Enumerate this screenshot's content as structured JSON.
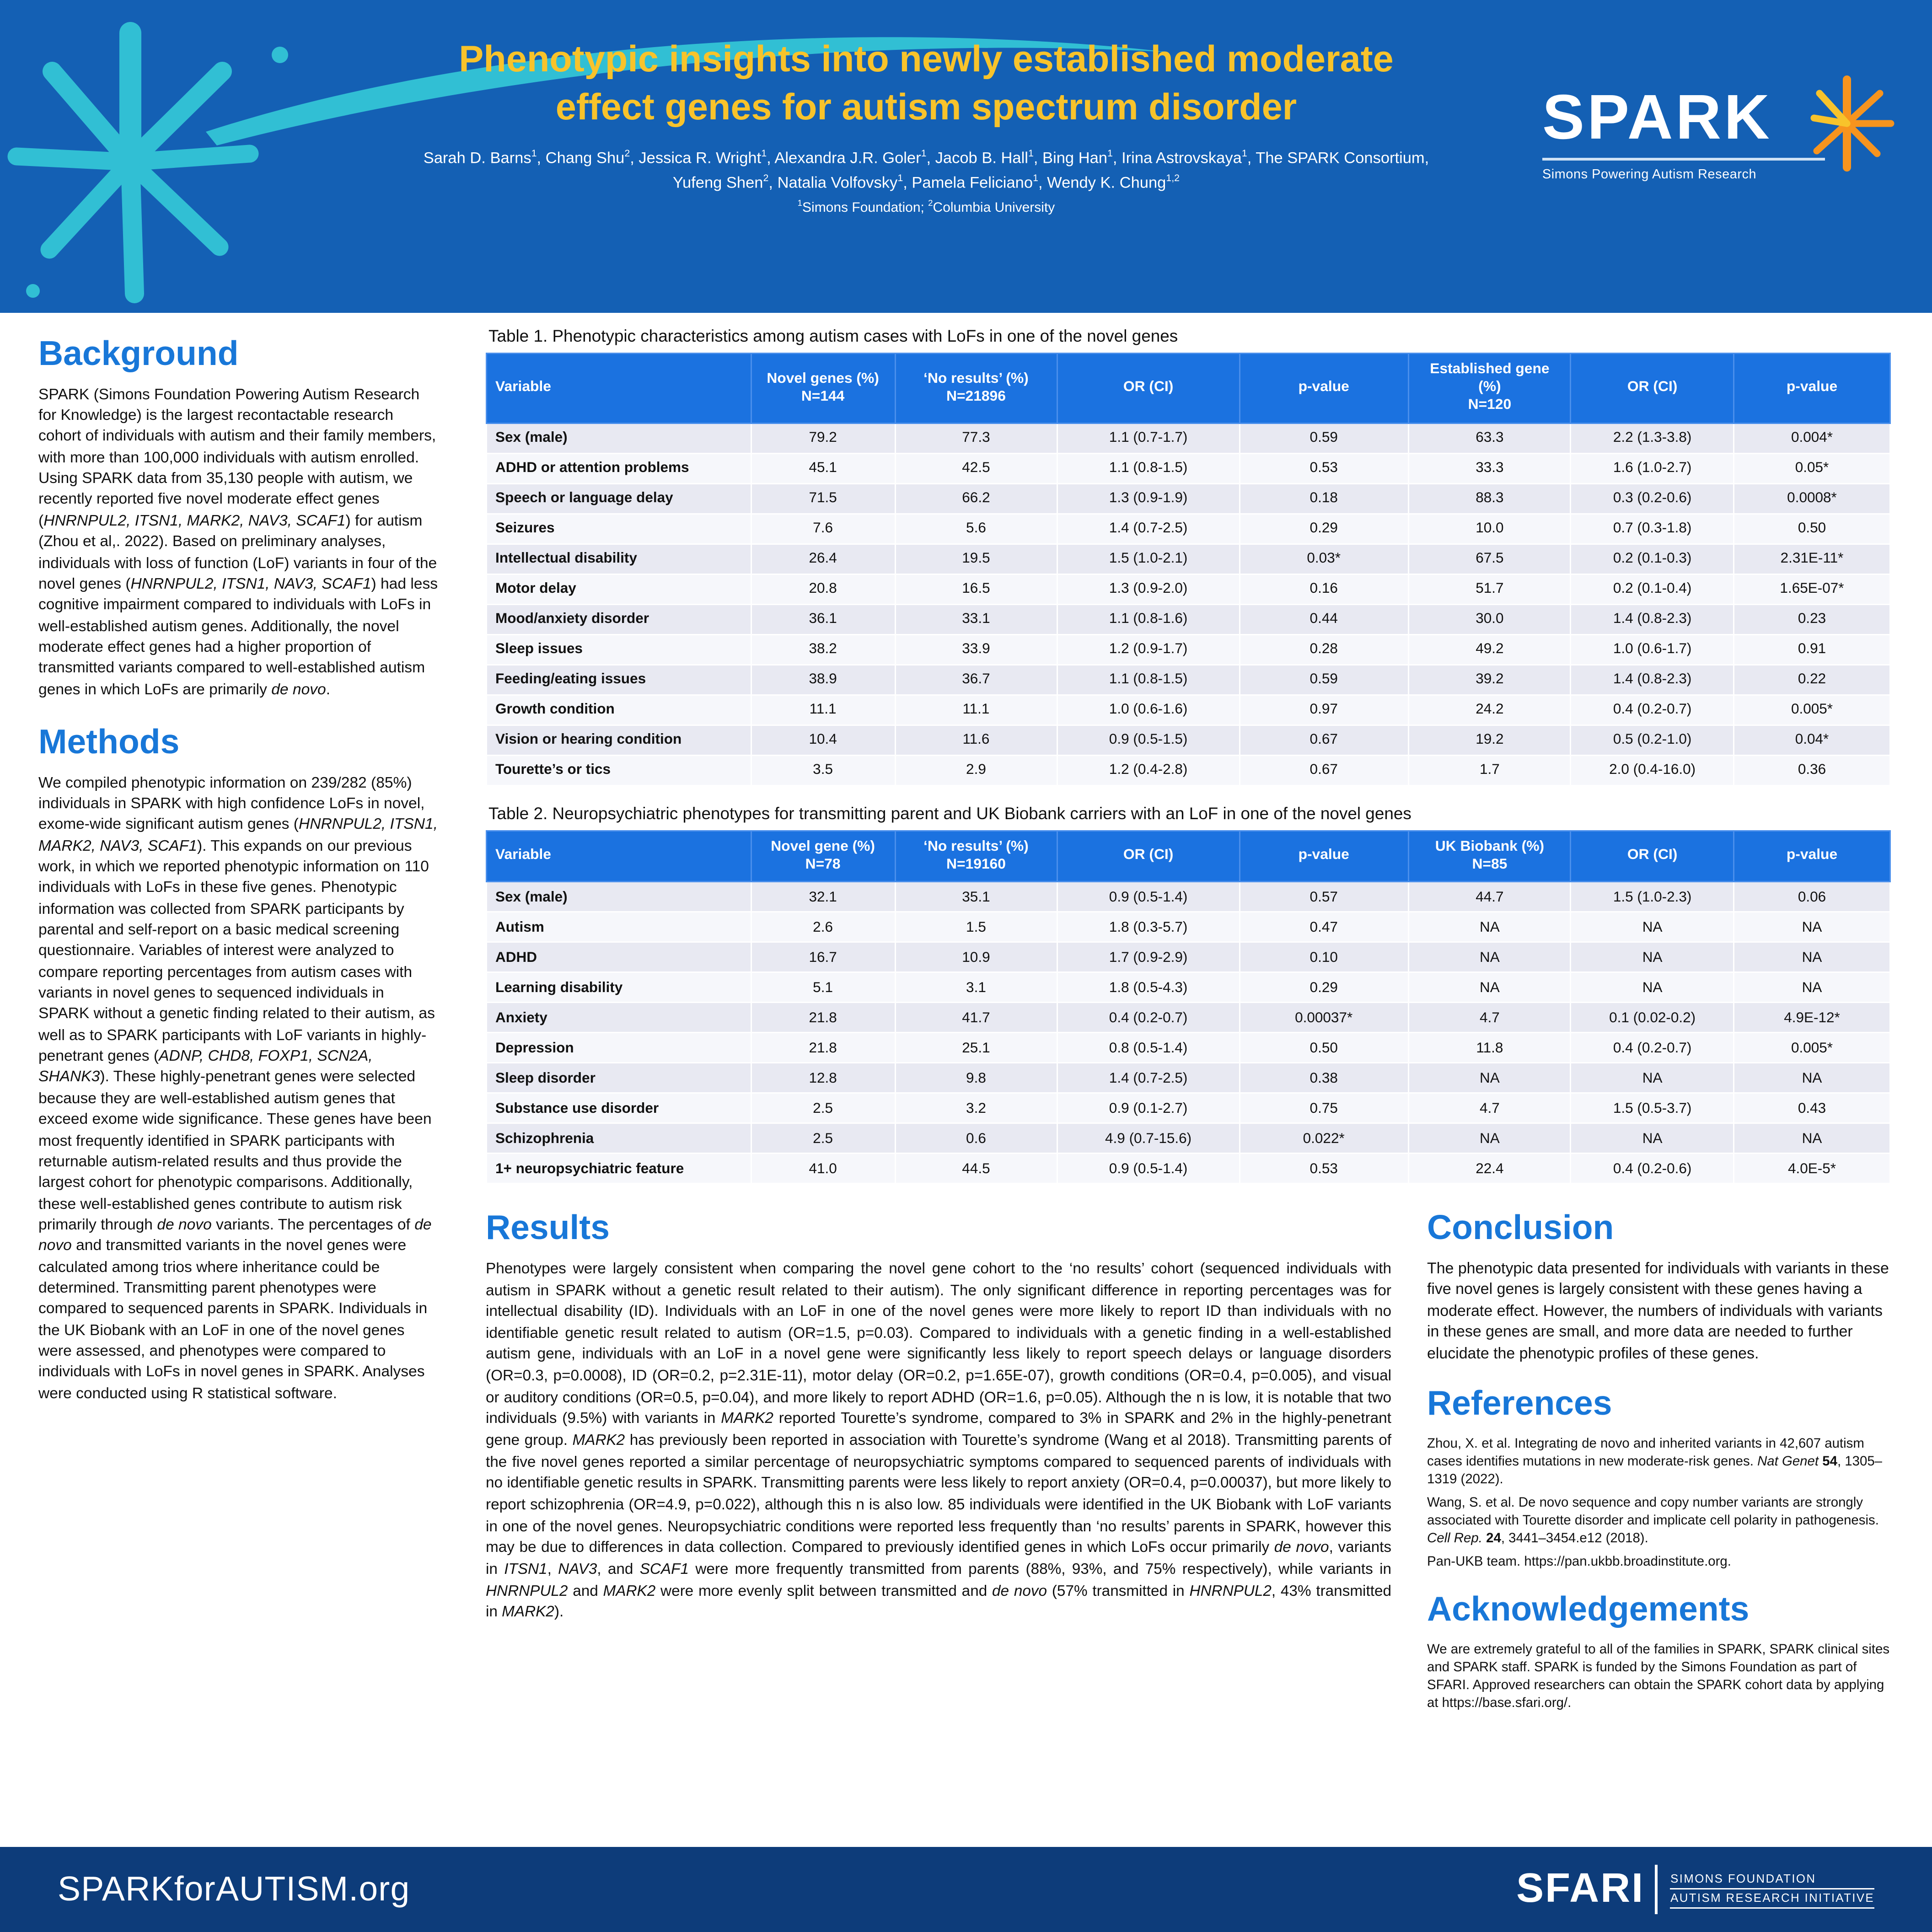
{
  "colors": {
    "header_blue": "#1460B4",
    "table_header_blue": "#1B72E0",
    "section_heading_blue": "#1877D8",
    "title_yellow": "#F8C32B",
    "teal_accent": "#31BFD4",
    "orange_accent": "#F7941E",
    "footer_navy": "#0D3C7A",
    "row_stripe": "#E8E9F2"
  },
  "header": {
    "title_lines": [
      "Phenotypic insights into newly established moderate",
      "effect genes for autism spectrum disorder"
    ],
    "authors_html": "Sarah D. Barns<sup>1</sup>, Chang Shu<sup>2</sup>, Jessica R. Wright<sup>1</sup>, Alexandra J.R. Goler<sup>1</sup>, Jacob B. Hall<sup>1</sup>, Bing Han<sup>1</sup>, Irina Astrovskaya<sup>1</sup>, The SPARK Consortium, Yufeng Shen<sup>2</sup>, Natalia Volfovsky<sup>1</sup>, Pamela Feliciano<sup>1</sup>, Wendy K. Chung<sup>1,2</sup>",
    "affiliations_html": "<sup>1</sup>Simons Foundation; <sup>2</sup>Columbia University",
    "logo": {
      "name": "SPARK",
      "tagline": "Simons Powering Autism Research"
    }
  },
  "sections": {
    "background": {
      "heading": "Background",
      "text_html": "SPARK (Simons Foundation Powering Autism Research for Knowledge) is the largest recontactable research cohort of individuals with autism and their family members, with more than 100,000 individuals with autism enrolled. Using SPARK data from 35,130 people with autism, we recently reported five novel moderate effect genes (<i>HNRNPUL2, ITSN1, MARK2, NAV3, SCAF1</i>) for autism (Zhou et al,. 2022). Based on preliminary analyses, individuals with loss of function (LoF) variants in four of the novel genes (<i>HNRNPUL2, ITSN1, NAV3, SCAF1</i>) had less cognitive impairment compared to individuals with LoFs in well-established autism genes. Additionally, the novel moderate effect genes had a higher proportion of transmitted variants compared to well-established autism genes in which LoFs are primarily <i>de novo</i>."
    },
    "methods": {
      "heading": "Methods",
      "text_html": "We compiled phenotypic information on 239/282 (85%) individuals in SPARK with high confidence LoFs in novel, exome-wide significant autism genes (<i>HNRNPUL2, ITSN1, MARK2, NAV3, SCAF1</i>). This expands on our previous work, in which we reported phenotypic information on 110 individuals with LoFs in these five genes. Phenotypic information was collected from SPARK participants by parental and self-report on a basic medical screening questionnaire. Variables of interest were analyzed to compare reporting percentages from autism cases with variants in novel genes to sequenced individuals in SPARK without a genetic finding related to their autism, as well as to SPARK participants with LoF variants in highly-penetrant genes (<i>ADNP, CHD8, FOXP1, SCN2A, SHANK3</i>). These highly-penetrant genes were selected because they are well-established autism genes that exceed exome wide significance. These genes have been most frequently identified in SPARK participants with returnable autism-related results and thus provide the largest cohort for phenotypic comparisons. Additionally, these well-established genes contribute to autism risk primarily through <i>de novo</i> variants. The percentages of <i>de novo</i> and transmitted variants in the novel genes were calculated among trios where inheritance could be determined. Transmitting parent phenotypes were compared to sequenced parents in SPARK. Individuals in the UK Biobank with an LoF in one of the novel genes were assessed, and phenotypes were compared to individuals with LoFs in novel genes in SPARK. Analyses were conducted using R statistical software."
    },
    "results": {
      "heading": "Results",
      "text_html": "Phenotypes were largely consistent when comparing the novel gene cohort to the ‘no results’ cohort (sequenced individuals with autism in SPARK without a genetic result related to their autism). The only significant difference in reporting percentages was for intellectual disability (ID). Individuals with an LoF in one of the novel genes were more likely to report ID than individuals with no identifiable genetic result related to autism (OR=1.5, p=0.03). Compared to individuals with a genetic finding in a well-established autism gene, individuals with an LoF in a novel gene were significantly less likely to report speech delays or language disorders (OR=0.3, p=0.0008), ID (OR=0.2, p=2.31E-11), motor delay (OR=0.2, p=1.65E-07), growth conditions (OR=0.4, p=0.005), and visual or auditory conditions (OR=0.5, p=0.04), and more likely to report ADHD (OR=1.6, p=0.05). Although the n is low, it is notable that two individuals (9.5%) with variants in <i>MARK2</i> reported Tourette’s syndrome, compared to 3% in SPARK and 2% in the highly-penetrant gene group. <i>MARK2</i> has previously been reported in association with Tourette’s syndrome (Wang et al 2018). Transmitting parents of the five novel genes reported a similar percentage of neuropsychiatric symptoms compared to sequenced parents of individuals with no identifiable genetic results in SPARK. Transmitting parents were less likely to report anxiety (OR=0.4, p=0.00037), but more likely to report schizophrenia (OR=4.9, p=0.022), although this n is also low. 85 individuals were identified in the UK Biobank with LoF variants in one of the novel genes. Neuropsychiatric conditions were reported less frequently than ‘no results’ parents in SPARK, however this may be due to differences in data collection. Compared to previously identified genes in which LoFs occur primarily <i>de novo</i>, variants in <i>ITSN1</i>, <i>NAV3</i>, and <i>SCAF1</i> were more frequently transmitted from parents (88%, 93%, and 75% respectively), while variants in <i>HNRNPUL2</i> and <i>MARK2</i> were more evenly split between transmitted and <i>de novo</i> (57% transmitted in <i>HNRNPUL2</i>, 43% transmitted in <i>MARK2</i>)."
    },
    "conclusion": {
      "heading": "Conclusion",
      "text_html": "The phenotypic data presented for individuals with variants in these five novel genes is largely consistent with these genes having a moderate effect. However, the numbers of individuals with variants in these genes are small, and more data are needed to further elucidate the phenotypic profiles of these genes."
    },
    "references": {
      "heading": "References",
      "items_html": [
        "Zhou, X. et al. Integrating de novo and inherited variants in 42,607 autism cases identifies mutations in new moderate-risk genes. <i>Nat Genet</i> <b>54</b>, 1305–1319 (2022).",
        "Wang, S. et al. De novo sequence and copy number variants are strongly associated with Tourette disorder and implicate cell polarity in pathogenesis. <i>Cell Rep.</i> <b>24</b>, 3441–3454.e12 (2018).",
        "Pan-UKB team. https://pan.ukbb.broadinstitute.org."
      ]
    },
    "acknowledgements": {
      "heading": "Acknowledgements",
      "text_html": "We are extremely grateful to all of the families in SPARK, SPARK clinical sites and SPARK staff. SPARK is funded by the Simons Foundation as part of SFARI. Approved researchers can obtain the SPARK cohort data by applying at https://base.sfari.org/."
    }
  },
  "table1": {
    "caption": "Table 1. Phenotypic characteristics among autism cases with LoFs in one of the novel genes",
    "columns": [
      "Variable",
      "Novel genes (%)<br>N=144",
      "‘No results’ (%)<br>N=21896",
      "OR (CI)",
      "p-value",
      "Established gene (%)<br>N=120",
      "OR (CI)",
      "p-value"
    ],
    "rows": [
      [
        "Sex (male)",
        "79.2",
        "77.3",
        "1.1 (0.7-1.7)",
        "0.59",
        "63.3",
        "2.2 (1.3-3.8)",
        "0.004*"
      ],
      [
        "ADHD or attention problems",
        "45.1",
        "42.5",
        "1.1 (0.8-1.5)",
        "0.53",
        "33.3",
        "1.6 (1.0-2.7)",
        "0.05*"
      ],
      [
        "Speech or language delay",
        "71.5",
        "66.2",
        "1.3 (0.9-1.9)",
        "0.18",
        "88.3",
        "0.3 (0.2-0.6)",
        "0.0008*"
      ],
      [
        "Seizures",
        "7.6",
        "5.6",
        "1.4 (0.7-2.5)",
        "0.29",
        "10.0",
        "0.7 (0.3-1.8)",
        "0.50"
      ],
      [
        "Intellectual disability",
        "26.4",
        "19.5",
        "1.5 (1.0-2.1)",
        "0.03*",
        "67.5",
        "0.2 (0.1-0.3)",
        "2.31E-11*"
      ],
      [
        "Motor delay",
        "20.8",
        "16.5",
        "1.3 (0.9-2.0)",
        "0.16",
        "51.7",
        "0.2 (0.1-0.4)",
        "1.65E-07*"
      ],
      [
        "Mood/anxiety disorder",
        "36.1",
        "33.1",
        "1.1 (0.8-1.6)",
        "0.44",
        "30.0",
        "1.4 (0.8-2.3)",
        "0.23"
      ],
      [
        "Sleep issues",
        "38.2",
        "33.9",
        "1.2 (0.9-1.7)",
        "0.28",
        "49.2",
        "1.0 (0.6-1.7)",
        "0.91"
      ],
      [
        "Feeding/eating issues",
        "38.9",
        "36.7",
        "1.1 (0.8-1.5)",
        "0.59",
        "39.2",
        "1.4 (0.8-2.3)",
        "0.22"
      ],
      [
        "Growth condition",
        "11.1",
        "11.1",
        "1.0 (0.6-1.6)",
        "0.97",
        "24.2",
        "0.4 (0.2-0.7)",
        "0.005*"
      ],
      [
        "Vision or hearing condition",
        "10.4",
        "11.6",
        "0.9 (0.5-1.5)",
        "0.67",
        "19.2",
        "0.5 (0.2-1.0)",
        "0.04*"
      ],
      [
        "Tourette’s or tics",
        "3.5",
        "2.9",
        "1.2 (0.4-2.8)",
        "0.67",
        "1.7",
        "2.0 (0.4-16.0)",
        "0.36"
      ]
    ]
  },
  "table2": {
    "caption": "Table 2. Neuropsychiatric phenotypes for transmitting parent and UK Biobank carriers with an LoF in one of the novel genes",
    "columns": [
      "Variable",
      "Novel gene (%)<br>N=78",
      "‘No results’ (%)<br>N=19160",
      "OR (CI)",
      "p-value",
      "UK Biobank (%)<br>N=85",
      "OR (CI)",
      "p-value"
    ],
    "rows": [
      [
        "Sex (male)",
        "32.1",
        "35.1",
        "0.9 (0.5-1.4)",
        "0.57",
        "44.7",
        "1.5 (1.0-2.3)",
        "0.06"
      ],
      [
        "Autism",
        "2.6",
        "1.5",
        "1.8 (0.3-5.7)",
        "0.47",
        "NA",
        "NA",
        "NA"
      ],
      [
        "ADHD",
        "16.7",
        "10.9",
        "1.7 (0.9-2.9)",
        "0.10",
        "NA",
        "NA",
        "NA"
      ],
      [
        "Learning disability",
        "5.1",
        "3.1",
        "1.8 (0.5-4.3)",
        "0.29",
        "NA",
        "NA",
        "NA"
      ],
      [
        "Anxiety",
        "21.8",
        "41.7",
        "0.4 (0.2-0.7)",
        "0.00037*",
        "4.7",
        "0.1 (0.02-0.2)",
        "4.9E-12*"
      ],
      [
        "Depression",
        "21.8",
        "25.1",
        "0.8 (0.5-1.4)",
        "0.50",
        "11.8",
        "0.4 (0.2-0.7)",
        "0.005*"
      ],
      [
        "Sleep disorder",
        "12.8",
        "9.8",
        "1.4 (0.7-2.5)",
        "0.38",
        "NA",
        "NA",
        "NA"
      ],
      [
        "Substance use disorder",
        "2.5",
        "3.2",
        "0.9 (0.1-2.7)",
        "0.75",
        "4.7",
        "1.5 (0.5-3.7)",
        "0.43"
      ],
      [
        "Schizophrenia",
        "2.5",
        "0.6",
        "4.9 (0.7-15.6)",
        "0.022*",
        "NA",
        "NA",
        "NA"
      ],
      [
        "1+ neuropsychiatric feature",
        "41.0",
        "44.5",
        "0.9 (0.5-1.4)",
        "0.53",
        "22.4",
        "0.4 (0.2-0.6)",
        "4.0E-5*"
      ]
    ]
  },
  "footer": {
    "url": "SPARKforAUTISM.org",
    "sfari_name": "SFARI",
    "sfari_line1": "SIMONS FOUNDATION",
    "sfari_line2": "AUTISM RESEARCH INITIATIVE"
  }
}
